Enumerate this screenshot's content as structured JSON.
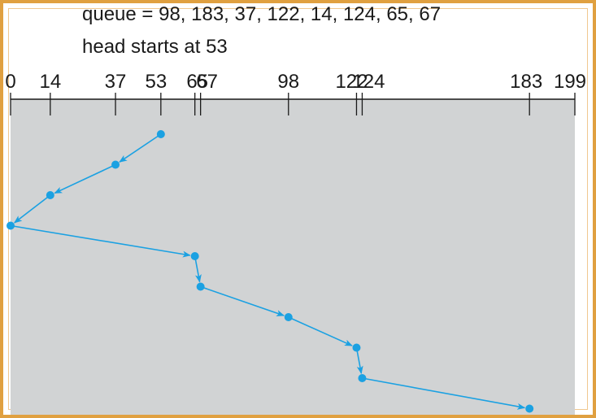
{
  "caption": {
    "queue_line": "queue = 98, 183, 37, 122, 14, 124, 65, 67",
    "head_line": "head starts at 53"
  },
  "colors": {
    "frame_border": "#e0a040",
    "plot_background": "#d1d3d4",
    "path": "#1ba1e2",
    "text": "#1a1a1a"
  },
  "axis": {
    "min": 0,
    "max": 199,
    "tick_labels": [
      "0",
      "14",
      "37",
      "53",
      "65",
      "67",
      "98",
      "122",
      "124",
      "183",
      "199"
    ]
  },
  "head_path": [
    53,
    37,
    14,
    0,
    65,
    67,
    98,
    122,
    124,
    183
  ]
}
